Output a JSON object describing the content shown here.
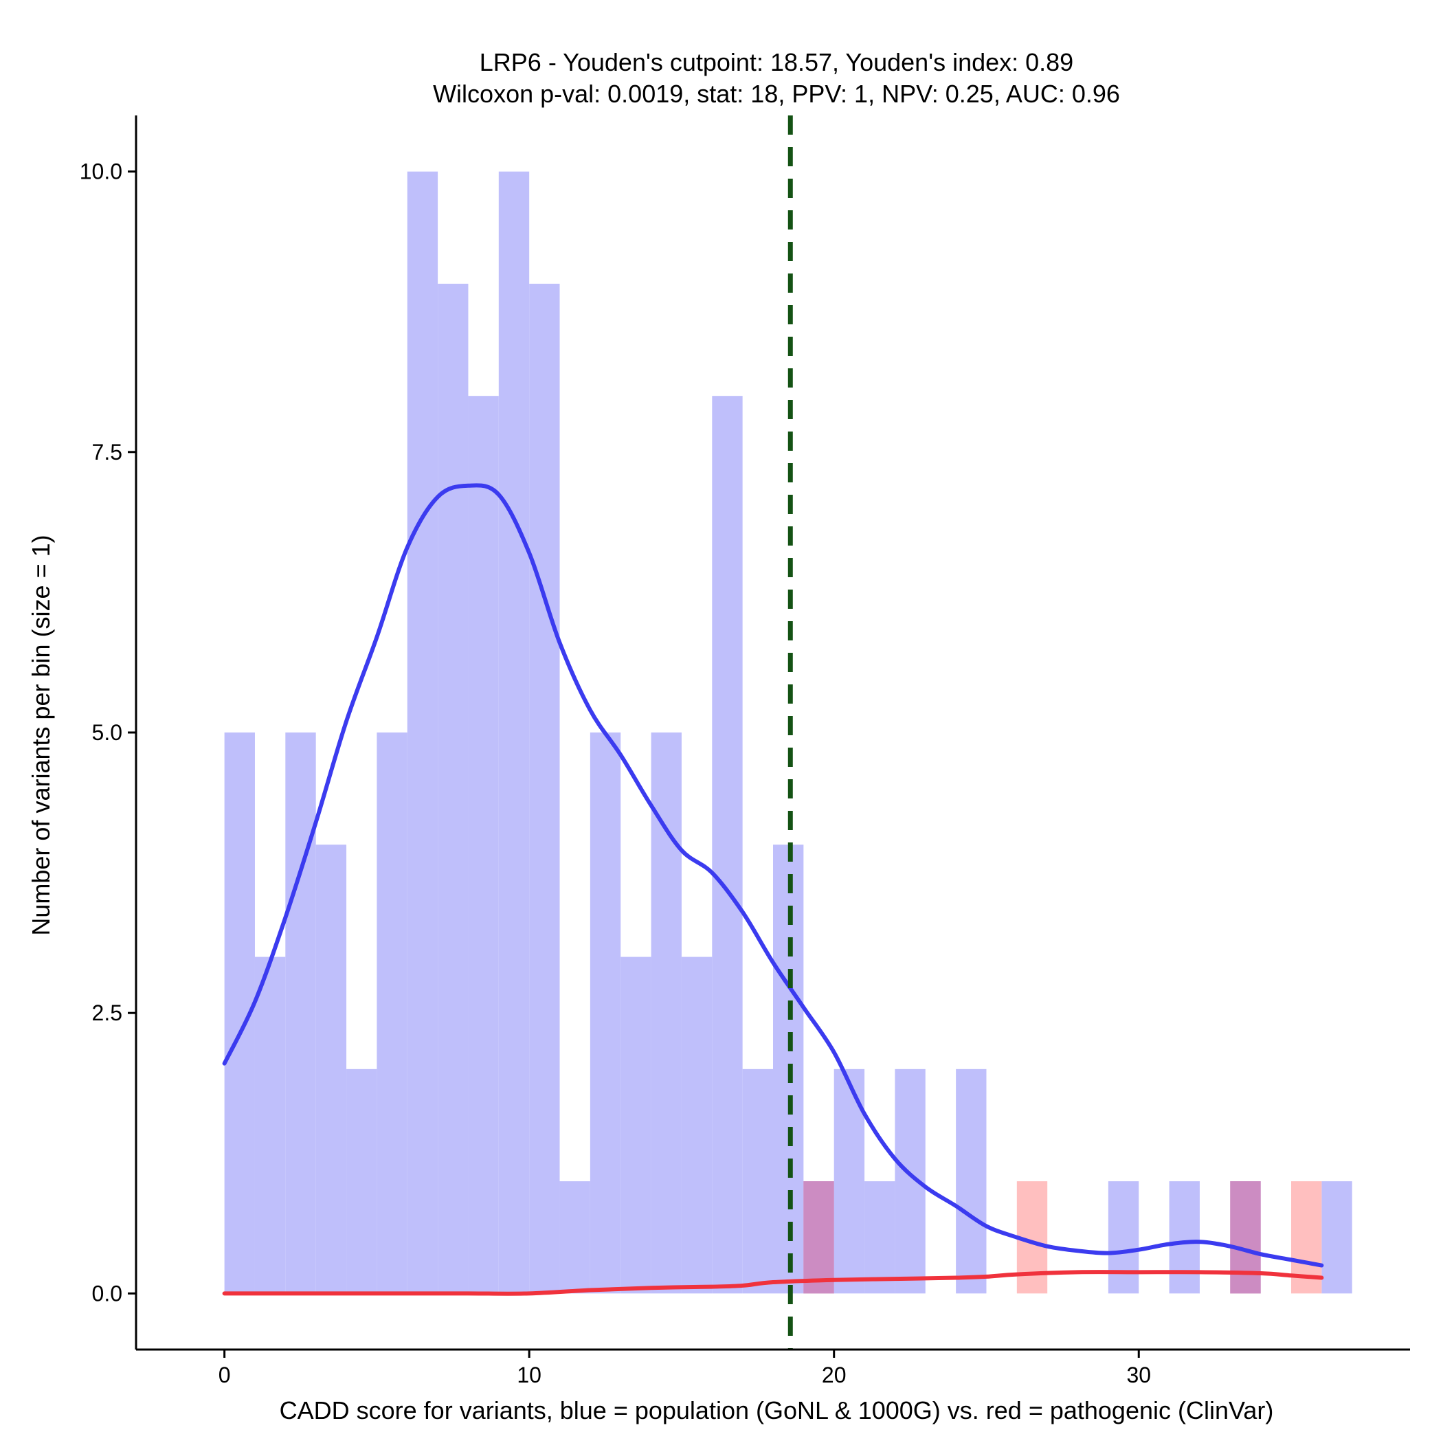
{
  "chart_data": {
    "type": "histogram",
    "title_line1": "LRP6 - Youden's cutpoint: 18.57, Youden's index: 0.89",
    "title_line2": "Wilcoxon p-val: 0.0019, stat: 18, PPV: 1, NPV: 0.25, AUC: 0.96",
    "xlabel": "CADD score for variants, blue = population (GoNL & 1000G) vs. red = pathogenic (ClinVar)",
    "ylabel": "Number of variants per bin (size = 1)",
    "xlim": [
      -2.9,
      38.9
    ],
    "ylim": [
      -0.5,
      10.5
    ],
    "x_ticks": [
      0,
      10,
      20,
      30
    ],
    "x_tick_labels": [
      "0",
      "10",
      "20",
      "30"
    ],
    "y_ticks": [
      0,
      2.5,
      5,
      7.5,
      10
    ],
    "y_tick_labels": [
      "0.0",
      "2.5",
      "5.0",
      "7.5",
      "10.0"
    ],
    "cutpoint": 18.57,
    "bin_size": 1,
    "colors": {
      "population_bar": "#bfbffb",
      "pathogenic_bar": "#ffbfbf",
      "overlap_bar": "#cc8cc2",
      "population_density": "#3b3bef",
      "pathogenic_density": "#f0323c",
      "cutpoint_line": "#145214"
    },
    "series": [
      {
        "name": "population (GoNL & 1000G)",
        "bins": [
          {
            "start": 0,
            "count": 5
          },
          {
            "start": 1,
            "count": 3
          },
          {
            "start": 2,
            "count": 5
          },
          {
            "start": 3,
            "count": 4
          },
          {
            "start": 4,
            "count": 2
          },
          {
            "start": 5,
            "count": 5
          },
          {
            "start": 6,
            "count": 10
          },
          {
            "start": 7,
            "count": 9
          },
          {
            "start": 8,
            "count": 8
          },
          {
            "start": 9,
            "count": 10
          },
          {
            "start": 10,
            "count": 9
          },
          {
            "start": 11,
            "count": 1
          },
          {
            "start": 12,
            "count": 5
          },
          {
            "start": 13,
            "count": 3
          },
          {
            "start": 14,
            "count": 5
          },
          {
            "start": 15,
            "count": 3
          },
          {
            "start": 16,
            "count": 8
          },
          {
            "start": 17,
            "count": 2
          },
          {
            "start": 18,
            "count": 4
          },
          {
            "start": 19,
            "count": 1
          },
          {
            "start": 20,
            "count": 2
          },
          {
            "start": 21,
            "count": 1
          },
          {
            "start": 22,
            "count": 2
          },
          {
            "start": 24,
            "count": 2
          },
          {
            "start": 29,
            "count": 1
          },
          {
            "start": 31,
            "count": 1
          },
          {
            "start": 33,
            "count": 1
          },
          {
            "start": 36,
            "count": 1
          }
        ]
      },
      {
        "name": "pathogenic (ClinVar)",
        "bins": [
          {
            "start": 19,
            "count": 1
          },
          {
            "start": 26,
            "count": 1
          },
          {
            "start": 33,
            "count": 1
          },
          {
            "start": 35,
            "count": 1
          }
        ]
      }
    ],
    "density_population": [
      [
        0.0,
        2.05
      ],
      [
        1.0,
        2.6
      ],
      [
        2.0,
        3.35
      ],
      [
        3.0,
        4.2
      ],
      [
        4.0,
        5.1
      ],
      [
        5.0,
        5.85
      ],
      [
        6.0,
        6.65
      ],
      [
        7.0,
        7.1
      ],
      [
        8.0,
        7.2
      ],
      [
        9.0,
        7.12
      ],
      [
        10.0,
        6.6
      ],
      [
        11.0,
        5.8
      ],
      [
        12.0,
        5.2
      ],
      [
        13.0,
        4.8
      ],
      [
        14.0,
        4.35
      ],
      [
        15.0,
        3.95
      ],
      [
        16.0,
        3.75
      ],
      [
        17.0,
        3.4
      ],
      [
        18.0,
        2.95
      ],
      [
        19.0,
        2.55
      ],
      [
        20.0,
        2.15
      ],
      [
        21.0,
        1.6
      ],
      [
        22.0,
        1.2
      ],
      [
        23.0,
        0.95
      ],
      [
        24.0,
        0.78
      ],
      [
        25.0,
        0.6
      ],
      [
        26.0,
        0.5
      ],
      [
        27.0,
        0.42
      ],
      [
        28.0,
        0.38
      ],
      [
        29.0,
        0.36
      ],
      [
        30.0,
        0.39
      ],
      [
        31.0,
        0.44
      ],
      [
        32.0,
        0.46
      ],
      [
        33.0,
        0.42
      ],
      [
        34.0,
        0.35
      ],
      [
        35.0,
        0.3
      ],
      [
        36.0,
        0.25
      ]
    ],
    "density_pathogenic": [
      [
        0.0,
        0.0
      ],
      [
        2.0,
        0.0
      ],
      [
        4.0,
        0.0
      ],
      [
        6.0,
        0.0
      ],
      [
        8.0,
        0.0
      ],
      [
        10.0,
        0.0
      ],
      [
        12.0,
        0.03
      ],
      [
        14.0,
        0.05
      ],
      [
        16.0,
        0.06
      ],
      [
        17.0,
        0.07
      ],
      [
        18.0,
        0.1
      ],
      [
        20.0,
        0.12
      ],
      [
        22.0,
        0.13
      ],
      [
        24.0,
        0.14
      ],
      [
        25.0,
        0.15
      ],
      [
        26.0,
        0.17
      ],
      [
        28.0,
        0.19
      ],
      [
        30.0,
        0.19
      ],
      [
        32.0,
        0.19
      ],
      [
        34.0,
        0.18
      ],
      [
        35.0,
        0.16
      ],
      [
        36.0,
        0.14
      ]
    ]
  }
}
